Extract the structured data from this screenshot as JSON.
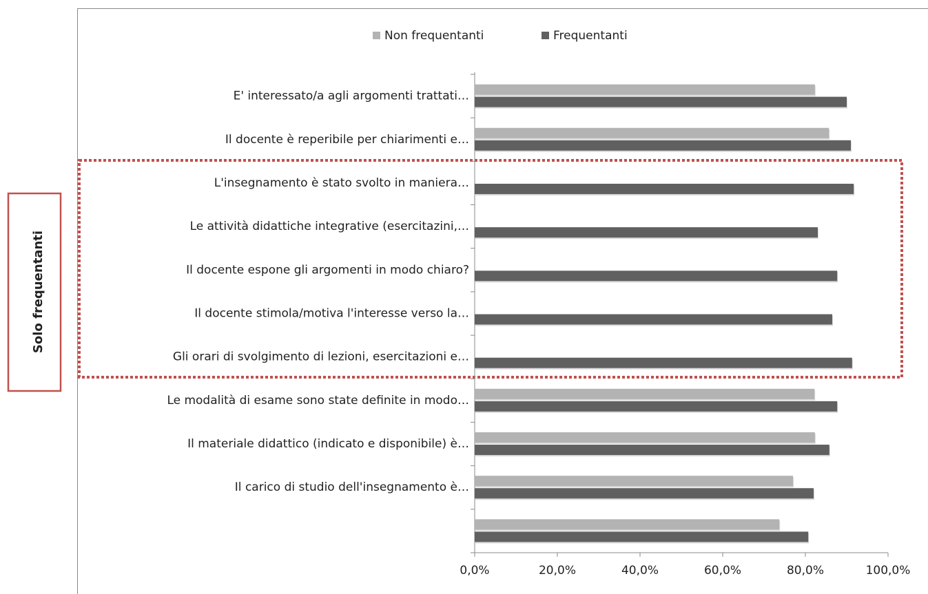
{
  "chart_data": {
    "type": "barh",
    "annotation": "Solo frequentanti",
    "categories": [
      "E' interessato/a agli argomenti trattati…",
      "Il docente è reperibile per chiarimenti e…",
      "L'insegnamento è stato svolto in maniera…",
      "Le attività didattiche integrative (esercitazini,…",
      "Il docente espone gli argomenti in modo chiaro?",
      "Il docente stimola/motiva l'interesse verso la…",
      "Gli orari di svolgimento di lezioni, esercitazioni e…",
      "Le modalità di esame sono state definite in modo…",
      "Il materiale didattico (indicato e disponibile) è…",
      "Il carico di studio dell'insegnamento è…",
      null
    ],
    "series": [
      {
        "name": "Non frequentanti",
        "color": "#b3b3b3",
        "values": [
          82.3,
          85.7,
          null,
          null,
          null,
          null,
          null,
          82.2,
          82.3,
          77.0,
          73.7
        ]
      },
      {
        "name": "Frequentanti",
        "color": "#606060",
        "values": [
          90.0,
          91.0,
          91.7,
          83.0,
          87.7,
          86.5,
          91.3,
          87.7,
          85.8,
          82.0,
          80.7
        ]
      }
    ],
    "xlim": [
      0,
      100
    ],
    "xticks": [
      {
        "value": 0,
        "label": "0,0%"
      },
      {
        "value": 20,
        "label": "20,0%"
      },
      {
        "value": 40,
        "label": "40,0%"
      },
      {
        "value": 60,
        "label": "60,0%"
      },
      {
        "value": 80,
        "label": "80,0%"
      },
      {
        "value": 100,
        "label": "100,0%"
      }
    ],
    "legend": "top"
  }
}
